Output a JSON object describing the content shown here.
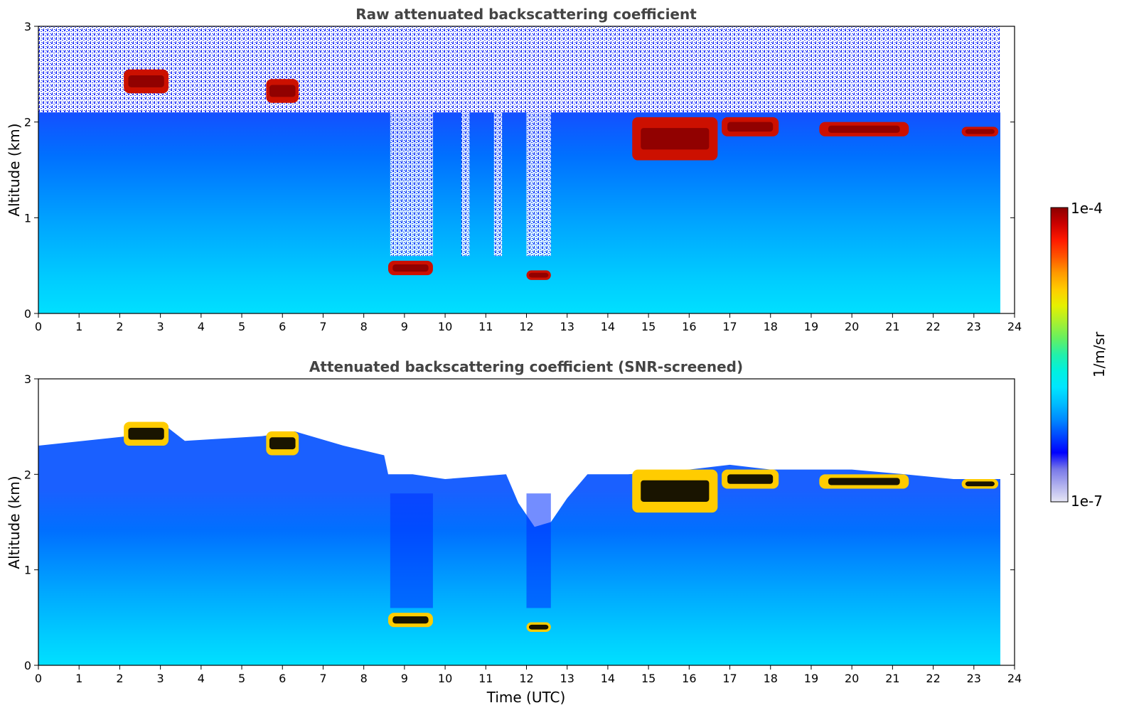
{
  "chart_data": [
    {
      "type": "heatmap",
      "title": "Raw attenuated backscattering coefficient",
      "xlabel": "",
      "ylabel": "Altitude (km)",
      "xlim": [
        0,
        24
      ],
      "ylim": [
        0,
        3
      ],
      "xticks": [
        "0",
        "1",
        "2",
        "3",
        "4",
        "5",
        "6",
        "7",
        "8",
        "9",
        "10",
        "11",
        "12",
        "13",
        "14",
        "15",
        "16",
        "17",
        "18",
        "19",
        "20",
        "21",
        "22",
        "23",
        "24"
      ],
      "yticks": [
        "0",
        "1",
        "2",
        "3"
      ],
      "data_end_hour": 23.65,
      "features": {
        "cloud_top_layer": [
          {
            "x": [
              2.1,
              3.2
            ],
            "y": [
              2.3,
              2.55
            ]
          },
          {
            "x": [
              5.6,
              6.4
            ],
            "y": [
              2.2,
              2.45
            ]
          },
          {
            "x": [
              14.6,
              16.7
            ],
            "y": [
              1.6,
              2.05
            ]
          },
          {
            "x": [
              16.8,
              18.2
            ],
            "y": [
              1.85,
              2.05
            ]
          },
          {
            "x": [
              19.2,
              21.4
            ],
            "y": [
              1.85,
              2.0
            ]
          },
          {
            "x": [
              22.7,
              23.6
            ],
            "y": [
              1.85,
              1.95
            ]
          }
        ],
        "low_cloud": [
          {
            "x": [
              8.6,
              9.7
            ],
            "y": [
              0.4,
              0.55
            ]
          },
          {
            "x": [
              12.0,
              12.6
            ],
            "y": [
              0.35,
              0.45
            ]
          }
        ],
        "noise_above_km": 2.1
      },
      "grid": false
    },
    {
      "type": "heatmap",
      "title": "Attenuated backscattering coefficient (SNR-screened)",
      "xlabel": "Time (UTC)",
      "ylabel": "Altitude (km)",
      "xlim": [
        0,
        24
      ],
      "ylim": [
        0,
        3
      ],
      "xticks": [
        "0",
        "1",
        "2",
        "3",
        "4",
        "5",
        "6",
        "7",
        "8",
        "9",
        "10",
        "11",
        "12",
        "13",
        "14",
        "15",
        "16",
        "17",
        "18",
        "19",
        "20",
        "21",
        "22",
        "23",
        "24"
      ],
      "yticks": [
        "0",
        "1",
        "2",
        "3"
      ],
      "data_end_hour": 23.65,
      "grid": false
    }
  ],
  "colorbar": {
    "max_label": "1e-4",
    "min_label": "1e-7",
    "units": "1/m/sr",
    "colormap": [
      "#e6e6f5",
      "#b0b0ee",
      "#7878e8",
      "#0000ff",
      "#0044ff",
      "#0088ff",
      "#00bbff",
      "#00e5ff",
      "#00f0e0",
      "#22f0aa",
      "#66f060",
      "#a8f030",
      "#e6f000",
      "#ffcc00",
      "#ff9900",
      "#ff5500",
      "#ff1a00",
      "#cc0000",
      "#8b0000"
    ]
  }
}
